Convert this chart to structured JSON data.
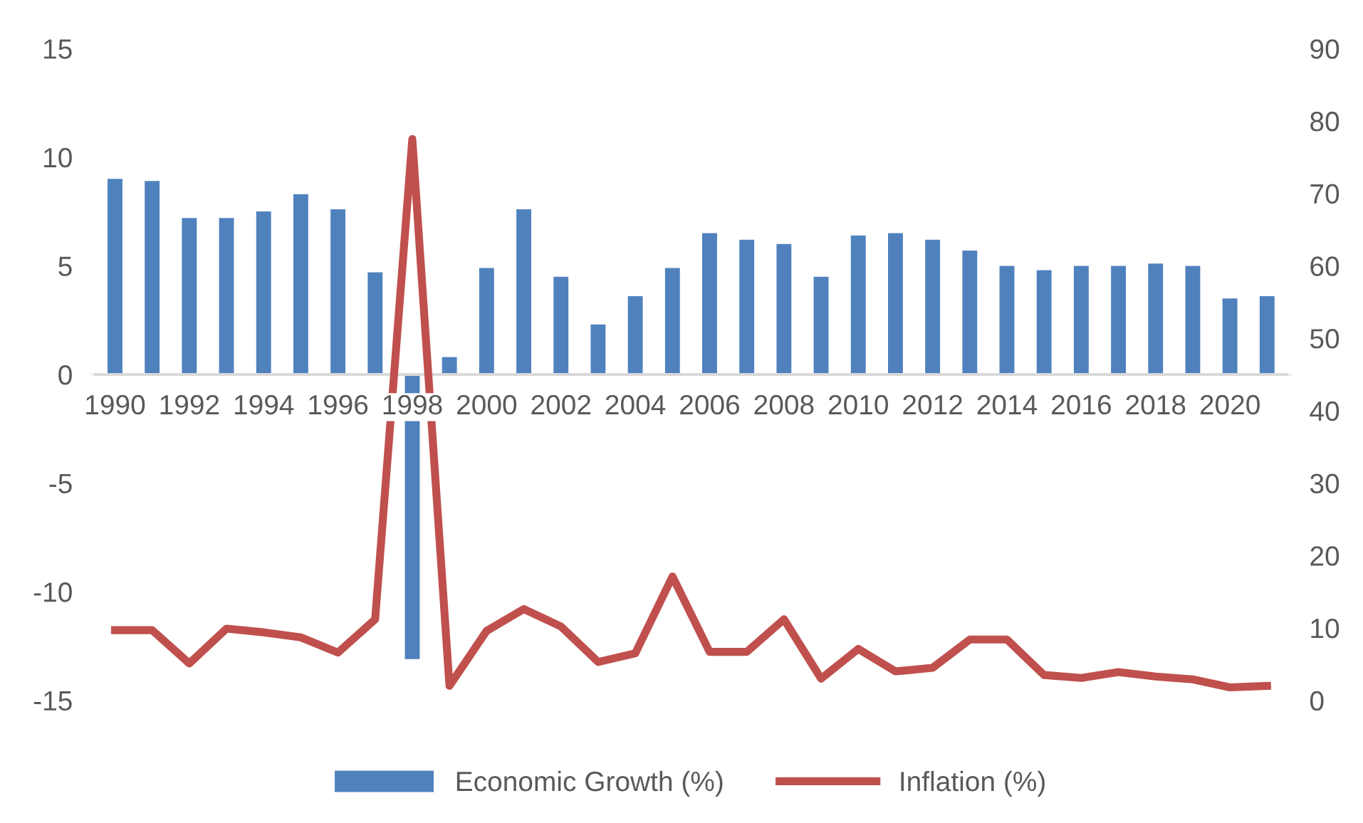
{
  "chart_data": {
    "type": "bar",
    "categories": [
      "1990",
      null,
      "1992",
      null,
      "1994",
      null,
      "1996",
      null,
      "1998",
      null,
      "2000",
      null,
      "2002",
      null,
      "2004",
      null,
      "2006",
      null,
      "2008",
      null,
      "2010",
      null,
      "2012",
      null,
      "2014",
      null,
      "2016",
      null,
      "2018",
      null,
      "2020",
      null
    ],
    "series": [
      {
        "name": "Economic Growth (%)",
        "color": "#4f81bd",
        "values": [
          9.0,
          8.9,
          7.2,
          7.2,
          7.5,
          8.3,
          7.6,
          4.7,
          -13.1,
          0.8,
          4.9,
          7.6,
          4.5,
          2.3,
          3.6,
          4.9,
          6.5,
          6.2,
          6.0,
          4.5,
          6.4,
          6.5,
          6.2,
          5.7,
          5.0,
          4.8,
          5.0,
          5.0,
          5.1,
          5.0,
          3.5,
          3.6
        ]
      },
      {
        "name": "Inflation (%)",
        "type": "line",
        "axis": "y2",
        "color": "#c0504d",
        "values": [
          9.7,
          9.7,
          5.1,
          9.9,
          9.4,
          8.7,
          6.6,
          11.2,
          77.5,
          2.0,
          9.6,
          12.6,
          10.2,
          5.3,
          6.5,
          17.1,
          6.7,
          6.7,
          11.2,
          3.0,
          7.1,
          4.0,
          4.5,
          8.4,
          8.4,
          3.5,
          3.1,
          3.9,
          3.3,
          2.9,
          1.8,
          2.0
        ]
      }
    ],
    "ylim": [
      -15,
      15
    ],
    "yticks": [
      -15,
      -10,
      -5,
      0,
      5,
      10,
      15
    ],
    "y2lim": [
      0,
      90
    ],
    "y2ticks": [
      0,
      10,
      20,
      30,
      40,
      50,
      60,
      70,
      80,
      90
    ],
    "legend": "bottom",
    "grid": false,
    "marker": "none",
    "line_style": "solid"
  }
}
